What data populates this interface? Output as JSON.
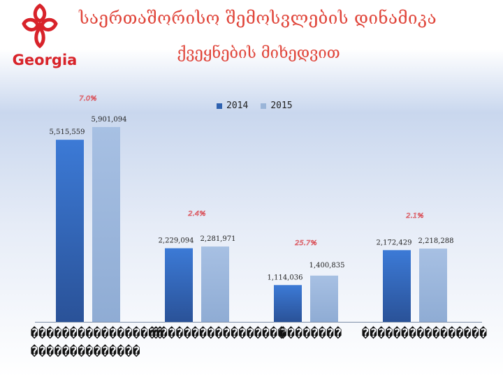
{
  "header": {
    "title": "საერთაშორისო შემოსვლების დინამიკა",
    "subtitle": "ქვეყნების მიხედვით",
    "logo_text": "Georgia"
  },
  "colors": {
    "brand_red": "#d8232a",
    "series_2014": "#2f62b0",
    "series_2015": "#9ab5d8"
  },
  "chart_data": {
    "type": "bar",
    "series": [
      {
        "name": "2014",
        "values": [
          5515559,
          2229094,
          1114036,
          2172429
        ]
      },
      {
        "name": "2015",
        "values": [
          5901094,
          2281971,
          1400835,
          2218288
        ]
      }
    ],
    "value_labels": [
      [
        "5,515,559",
        "2,229,094",
        "1,114,036",
        "2,172,429"
      ],
      [
        "5,901,094",
        "2,281,971",
        "1,400,835",
        "2,218,288"
      ]
    ],
    "growth_labels": [
      "7.0%",
      "2.4%",
      "25.7%",
      "2.1%"
    ],
    "categories": [
      "",
      "",
      "",
      ""
    ],
    "category_labels_rendered": [
      "�����������������",
      "�����������������",
      "��������",
      "����������������"
    ],
    "legend": [
      "2014",
      "2015"
    ],
    "legend_placement": "top-center",
    "ylim": [
      0,
      7000000
    ],
    "grid": false,
    "xlabel": "",
    "ylabel": ""
  }
}
